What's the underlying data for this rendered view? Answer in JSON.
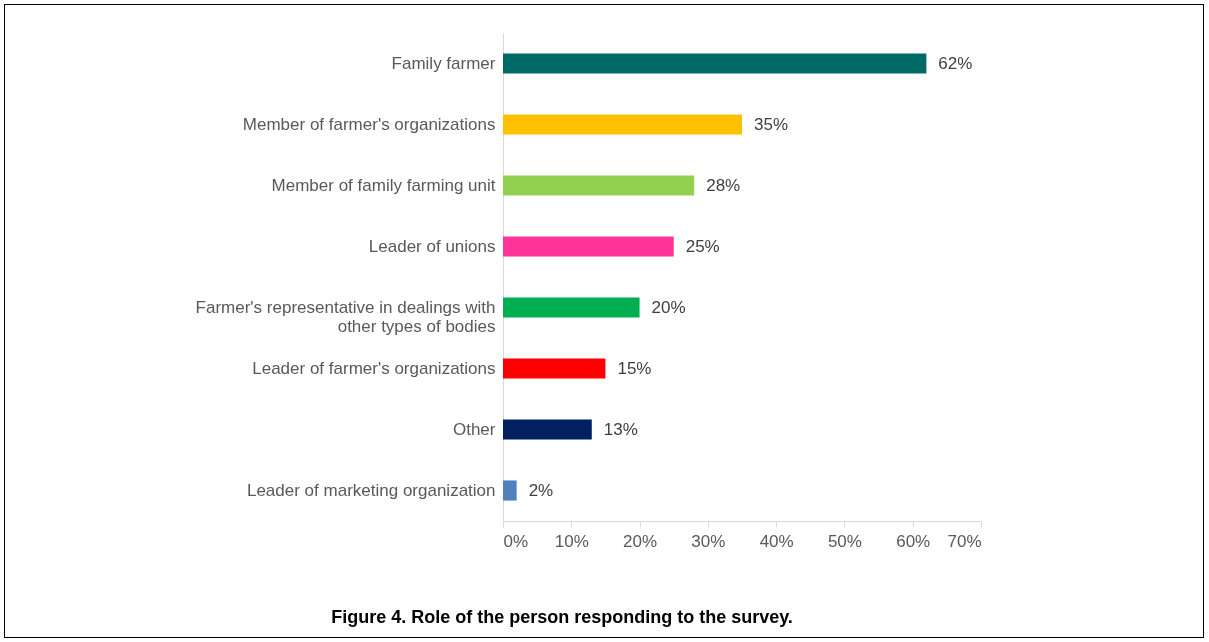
{
  "chart_data": {
    "type": "bar",
    "orientation": "horizontal",
    "title": "Figure 4. Role of the person responding to the survey.",
    "categories": [
      "Family farmer",
      "Member of farmer's organizations",
      "Member of family farming unit",
      "Leader of unions",
      "Farmer's representative in dealings with other types of bodies",
      "Leader of farmer's organizations",
      "Other",
      "Leader of marketing organization"
    ],
    "values": [
      62,
      35,
      28,
      25,
      20,
      15,
      13,
      2
    ],
    "value_labels": [
      "62%",
      "35%",
      "28%",
      "25%",
      "20%",
      "15%",
      "13%",
      "2%"
    ],
    "colors": [
      "#006a66",
      "#ffc000",
      "#92d050",
      "#ff3399",
      "#00b050",
      "#ff0000",
      "#002060",
      "#4f81bd"
    ],
    "xlim": [
      0,
      70
    ],
    "xticks": [
      {
        "value": 0,
        "label": "0%"
      },
      {
        "value": 10,
        "label": "10%"
      },
      {
        "value": 20,
        "label": "20%"
      },
      {
        "value": 30,
        "label": "30%"
      },
      {
        "value": 40,
        "label": "40%"
      },
      {
        "value": 50,
        "label": "50%"
      },
      {
        "value": 60,
        "label": "60%"
      },
      {
        "value": 70,
        "label": "70%"
      }
    ],
    "grid": false
  }
}
